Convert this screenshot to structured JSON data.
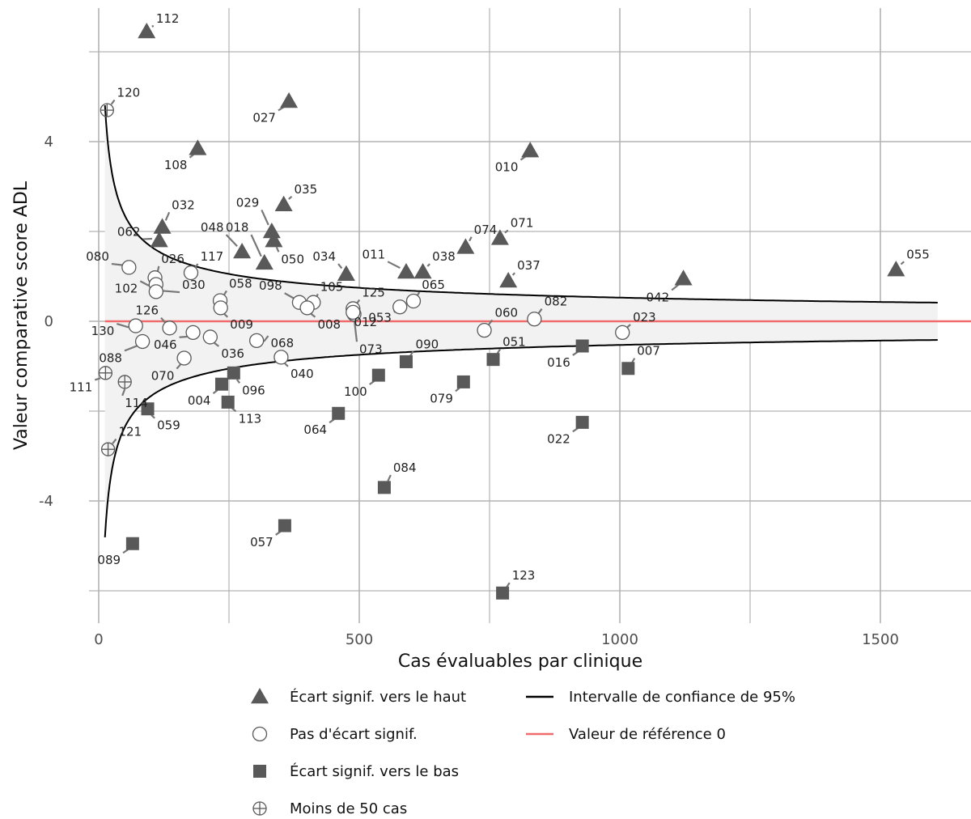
{
  "chart_data": {
    "type": "scatter",
    "title": "",
    "xlabel": "Cas évaluables par clinique",
    "ylabel": "Valeur comparative score ADL",
    "xlim": [
      -30,
      1620
    ],
    "ylim": [
      -6.8,
      6.9
    ],
    "xticks": [
      0,
      500,
      1000,
      1500
    ],
    "yticks": [
      -4,
      0,
      4
    ],
    "xtick_labels": [
      "0",
      "500",
      "1000",
      "1500"
    ],
    "ytick_labels": [
      "-4",
      "0",
      "4"
    ],
    "grid": true,
    "reference_line": {
      "value": 0,
      "color": "#f06b6b"
    },
    "confidence_band": {
      "z": 1.96,
      "sd": 8.5,
      "x_start": 12,
      "x_end": 1610,
      "line_color": "#000000",
      "fill": "#f2f2f2"
    },
    "legend": {
      "placement": "bottom",
      "entries": [
        {
          "key": "up",
          "label": "Écart signif. vers le haut"
        },
        {
          "key": "none",
          "label": "Pas d'écart signif."
        },
        {
          "key": "down",
          "label": "Écart signif. vers le bas"
        },
        {
          "key": "few",
          "label": "Moins de 50 cas"
        },
        {
          "key": "ci",
          "label": "Intervalle de confiance de 95%"
        },
        {
          "key": "ref",
          "label": "Valeur de référence 0"
        }
      ]
    },
    "colors": {
      "marker_fill": "#595959",
      "open_stroke": "#595959",
      "leader": "#777777"
    },
    "points": [
      {
        "id": "112",
        "x": 92,
        "y": 6.45,
        "group": "up",
        "lx": 110,
        "ly": 6.65
      },
      {
        "id": "027",
        "x": 365,
        "y": 4.9,
        "group": "up",
        "lx": 340,
        "ly": 4.55
      },
      {
        "id": "108",
        "x": 190,
        "y": 3.85,
        "group": "up",
        "lx": 170,
        "ly": 3.5
      },
      {
        "id": "010",
        "x": 828,
        "y": 3.8,
        "group": "up",
        "lx": 805,
        "ly": 3.45
      },
      {
        "id": "035",
        "x": 355,
        "y": 2.6,
        "group": "up",
        "lx": 375,
        "ly": 2.85
      },
      {
        "id": "029",
        "x": 332,
        "y": 2.0,
        "group": "up",
        "lx": 308,
        "ly": 2.55
      },
      {
        "id": "050",
        "x": 336,
        "y": 1.8,
        "group": "up",
        "lx": 350,
        "ly": 1.4
      },
      {
        "id": "032",
        "x": 122,
        "y": 2.1,
        "group": "up",
        "lx": 140,
        "ly": 2.5
      },
      {
        "id": "062",
        "x": 116,
        "y": 1.8,
        "group": "up",
        "lx": 80,
        "ly": 1.9
      },
      {
        "id": "048",
        "x": 275,
        "y": 1.55,
        "group": "up",
        "lx": 240,
        "ly": 2.0
      },
      {
        "id": "018",
        "x": 318,
        "y": 1.3,
        "group": "up",
        "lx": 288,
        "ly": 2.0
      },
      {
        "id": "034",
        "x": 475,
        "y": 1.05,
        "group": "up",
        "lx": 455,
        "ly": 1.35
      },
      {
        "id": "011",
        "x": 590,
        "y": 1.1,
        "group": "up",
        "lx": 550,
        "ly": 1.4
      },
      {
        "id": "038",
        "x": 622,
        "y": 1.1,
        "group": "up",
        "lx": 640,
        "ly": 1.35
      },
      {
        "id": "074",
        "x": 704,
        "y": 1.65,
        "group": "up",
        "lx": 720,
        "ly": 1.95
      },
      {
        "id": "071",
        "x": 770,
        "y": 1.85,
        "group": "up",
        "lx": 790,
        "ly": 2.1
      },
      {
        "id": "037",
        "x": 786,
        "y": 0.9,
        "group": "up",
        "lx": 803,
        "ly": 1.15
      },
      {
        "id": "042",
        "x": 1122,
        "y": 0.95,
        "group": "up",
        "lx": 1095,
        "ly": 0.55
      },
      {
        "id": "055",
        "x": 1530,
        "y": 1.15,
        "group": "up",
        "lx": 1550,
        "ly": 1.4
      },
      {
        "id": "080",
        "x": 58,
        "y": 1.2,
        "group": "none",
        "lx": 20,
        "ly": 1.35
      },
      {
        "id": "026",
        "x": 108,
        "y": 0.97,
        "group": "none",
        "lx": 120,
        "ly": 1.3
      },
      {
        "id": "102",
        "x": 110,
        "y": 0.82,
        "group": "none",
        "lx": 75,
        "ly": 0.75
      },
      {
        "id": "030",
        "x": 110,
        "y": 0.66,
        "group": "none",
        "lx": 160,
        "ly": 0.72
      },
      {
        "id": "117",
        "x": 177,
        "y": 1.08,
        "group": "none",
        "lx": 195,
        "ly": 1.35
      },
      {
        "id": "058",
        "x": 233,
        "y": 0.46,
        "group": "none",
        "lx": 250,
        "ly": 0.75
      },
      {
        "id": "009",
        "x": 234,
        "y": 0.3,
        "group": "none",
        "lx": 252,
        "ly": -0.05
      },
      {
        "id": "098",
        "x": 385,
        "y": 0.42,
        "group": "none",
        "lx": 352,
        "ly": 0.7
      },
      {
        "id": "105",
        "x": 412,
        "y": 0.42,
        "group": "none",
        "lx": 425,
        "ly": 0.68
      },
      {
        "id": "008",
        "x": 400,
        "y": 0.3,
        "group": "none",
        "lx": 420,
        "ly": -0.05
      },
      {
        "id": "125",
        "x": 488,
        "y": 0.28,
        "group": "none",
        "lx": 505,
        "ly": 0.55
      },
      {
        "id": "012",
        "x": 490,
        "y": 0.16,
        "group": "none",
        "lx": 490,
        "ly": 0.0
      },
      {
        "id": "073",
        "x": 488,
        "y": 0.2,
        "group": "none",
        "lx": 500,
        "ly": -0.6
      },
      {
        "id": "065",
        "x": 604,
        "y": 0.45,
        "group": "none",
        "lx": 620,
        "ly": 0.72
      },
      {
        "id": "053",
        "x": 578,
        "y": 0.32,
        "group": "none",
        "lx": 562,
        "ly": 0.1
      },
      {
        "id": "060",
        "x": 740,
        "y": -0.2,
        "group": "none",
        "lx": 760,
        "ly": 0.1
      },
      {
        "id": "082",
        "x": 836,
        "y": 0.05,
        "group": "none",
        "lx": 855,
        "ly": 0.35
      },
      {
        "id": "023",
        "x": 1005,
        "y": -0.25,
        "group": "none",
        "lx": 1025,
        "ly": 0.0
      },
      {
        "id": "126",
        "x": 136,
        "y": -0.15,
        "group": "none",
        "lx": 115,
        "ly": 0.15
      },
      {
        "id": "130",
        "x": 71,
        "y": -0.1,
        "group": "none",
        "lx": 30,
        "ly": -0.2
      },
      {
        "id": "046",
        "x": 181,
        "y": -0.25,
        "group": "none",
        "lx": 150,
        "ly": -0.5
      },
      {
        "id": "088",
        "x": 84,
        "y": -0.45,
        "group": "none",
        "lx": 45,
        "ly": -0.8
      },
      {
        "id": "036",
        "x": 214,
        "y": -0.35,
        "group": "none",
        "lx": 235,
        "ly": -0.7
      },
      {
        "id": "068",
        "x": 303,
        "y": -0.43,
        "group": "none",
        "lx": 330,
        "ly": -0.47
      },
      {
        "id": "070",
        "x": 164,
        "y": -0.82,
        "group": "none",
        "lx": 145,
        "ly": -1.2
      },
      {
        "id": "040",
        "x": 350,
        "y": -0.8,
        "group": "none",
        "lx": 368,
        "ly": -1.15
      },
      {
        "id": "004",
        "x": 236,
        "y": -1.4,
        "group": "down",
        "lx": 215,
        "ly": -1.75
      },
      {
        "id": "096",
        "x": 259,
        "y": -1.15,
        "group": "down",
        "lx": 275,
        "ly": -1.52
      },
      {
        "id": "113",
        "x": 248,
        "y": -1.8,
        "group": "down",
        "lx": 268,
        "ly": -2.15
      },
      {
        "id": "059",
        "x": 94,
        "y": -1.95,
        "group": "down",
        "lx": 112,
        "ly": -2.3
      },
      {
        "id": "100",
        "x": 537,
        "y": -1.2,
        "group": "down",
        "lx": 515,
        "ly": -1.55
      },
      {
        "id": "090",
        "x": 590,
        "y": -0.9,
        "group": "down",
        "lx": 608,
        "ly": -0.6
      },
      {
        "id": "079",
        "x": 700,
        "y": -1.35,
        "group": "down",
        "lx": 680,
        "ly": -1.7
      },
      {
        "id": "051",
        "x": 757,
        "y": -0.85,
        "group": "down",
        "lx": 775,
        "ly": -0.55
      },
      {
        "id": "016",
        "x": 928,
        "y": -0.55,
        "group": "down",
        "lx": 905,
        "ly": -0.9
      },
      {
        "id": "007",
        "x": 1016,
        "y": -1.05,
        "group": "down",
        "lx": 1033,
        "ly": -0.75
      },
      {
        "id": "022",
        "x": 928,
        "y": -2.25,
        "group": "down",
        "lx": 905,
        "ly": -2.6
      },
      {
        "id": "064",
        "x": 460,
        "y": -2.05,
        "group": "down",
        "lx": 438,
        "ly": -2.4
      },
      {
        "id": "084",
        "x": 548,
        "y": -3.7,
        "group": "down",
        "lx": 565,
        "ly": -3.35
      },
      {
        "id": "057",
        "x": 357,
        "y": -4.55,
        "group": "down",
        "lx": 335,
        "ly": -4.9
      },
      {
        "id": "089",
        "x": 65,
        "y": -4.95,
        "group": "down",
        "lx": 42,
        "ly": -5.3
      },
      {
        "id": "123",
        "x": 775,
        "y": -6.05,
        "group": "down",
        "lx": 793,
        "ly": -5.75
      },
      {
        "id": "120",
        "x": 16,
        "y": 4.7,
        "group": "few",
        "lx": 35,
        "ly": 5.0
      },
      {
        "id": "111",
        "x": 13,
        "y": -1.15,
        "group": "few",
        "lx": -12,
        "ly": -1.45
      },
      {
        "id": "114",
        "x": 50,
        "y": -1.35,
        "group": "few",
        "lx": 50,
        "ly": -1.8
      },
      {
        "id": "121",
        "x": 18,
        "y": -2.85,
        "group": "few",
        "lx": 38,
        "ly": -2.55
      }
    ]
  }
}
